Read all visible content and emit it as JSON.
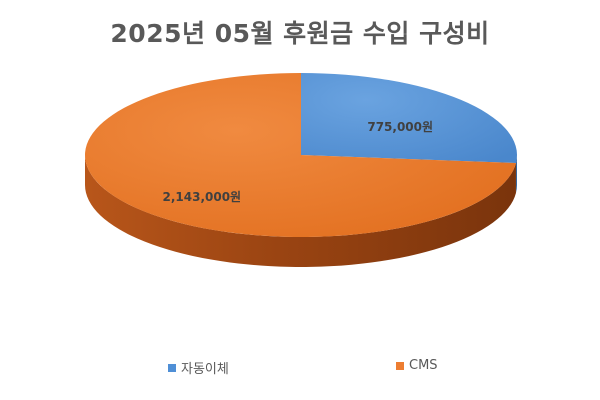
{
  "chart_data": {
    "type": "pie",
    "title": "2025년 05월 후원금 수입 구성비",
    "slices": [
      {
        "label": "자동이체",
        "value": 775000,
        "data_label": "775,000원",
        "color": "#4F8FD6"
      },
      {
        "label": "CMS",
        "value": 2143000,
        "data_label": "2,143,000원",
        "color": "#ED7D31"
      }
    ],
    "legend_position": "bottom",
    "three_d": true
  }
}
